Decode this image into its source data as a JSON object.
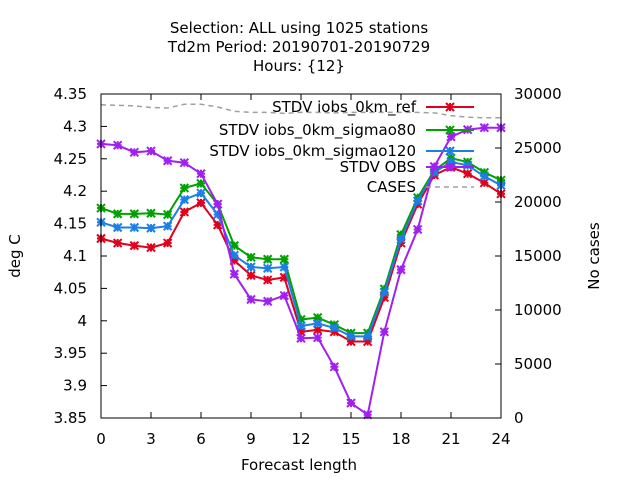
{
  "chart_data": {
    "type": "line",
    "title_lines": [
      "Selection: ALL using  1025 stations",
      "Td2m   Period: 20190701-20190729",
      "Hours: {12}"
    ],
    "xlabel": "Forecast length",
    "ylabel": "deg C",
    "y2label": "No cases",
    "xlim": [
      0,
      24
    ],
    "ylim": [
      3.85,
      4.35
    ],
    "y2lim": [
      0,
      30000
    ],
    "xticks": [
      0,
      3,
      6,
      9,
      12,
      15,
      18,
      21,
      24
    ],
    "yticks": [
      3.85,
      3.9,
      3.95,
      4,
      4.05,
      4.1,
      4.15,
      4.2,
      4.25,
      4.3,
      4.35
    ],
    "ytick_labels": [
      "3.85",
      "3.9",
      "3.95",
      "4",
      "4.05",
      "4.1",
      "4.15",
      "4.2",
      "4.25",
      "4.3",
      "4.35"
    ],
    "y2ticks": [
      0,
      5000,
      10000,
      15000,
      20000,
      25000,
      30000
    ],
    "legend_position": "top-right, inside",
    "grid": false,
    "x": [
      0,
      1,
      2,
      3,
      4,
      5,
      6,
      7,
      8,
      9,
      10,
      11,
      12,
      13,
      14,
      15,
      16,
      17,
      18,
      19,
      20,
      21,
      22,
      23,
      24
    ],
    "series": [
      {
        "name": "STDV iobs_0km_ref",
        "color": "#e0001c",
        "axis": "y1",
        "values": [
          4.127,
          4.12,
          4.116,
          4.113,
          4.12,
          4.168,
          4.182,
          4.148,
          4.093,
          4.07,
          4.063,
          4.067,
          3.983,
          3.986,
          3.983,
          3.968,
          3.968,
          4.036,
          4.12,
          4.18,
          4.225,
          4.237,
          4.227,
          4.213,
          4.196
        ]
      },
      {
        "name": "STDV iobs_0km_sigmao80",
        "color": "#00a100",
        "axis": "y1",
        "values": [
          4.174,
          4.165,
          4.165,
          4.166,
          4.164,
          4.205,
          4.212,
          4.18,
          4.116,
          4.098,
          4.095,
          4.095,
          4.002,
          4.005,
          3.994,
          3.981,
          3.981,
          4.049,
          4.133,
          4.19,
          4.232,
          4.251,
          4.245,
          4.229,
          4.217
        ]
      },
      {
        "name": "STDV iobs_0km_sigmao120",
        "color": "#1b7fe6",
        "axis": "y1",
        "values": [
          4.152,
          4.144,
          4.144,
          4.143,
          4.146,
          4.187,
          4.197,
          4.164,
          4.101,
          4.083,
          4.081,
          4.083,
          3.992,
          3.996,
          3.989,
          3.976,
          3.976,
          4.044,
          4.126,
          4.185,
          4.229,
          4.245,
          4.24,
          4.223,
          4.209
        ]
      },
      {
        "name": "STDV OBS",
        "color": "#a020f0",
        "axis": "y1",
        "values": [
          4.273,
          4.271,
          4.26,
          4.262,
          4.247,
          4.244,
          4.227,
          4.18,
          4.072,
          4.033,
          4.03,
          4.039,
          3.973,
          3.974,
          3.929,
          3.873,
          3.855,
          3.983,
          4.079,
          4.141,
          4.238,
          4.284,
          4.295,
          4.298,
          4.298
        ]
      },
      {
        "name": "CASES",
        "color": "#a0a0a0",
        "axis": "y2",
        "values": [
          29000,
          28950,
          28900,
          28750,
          28700,
          29050,
          29050,
          28800,
          28400,
          28300,
          28300,
          28200,
          28300,
          28300,
          28250,
          28300,
          28300,
          28300,
          28300,
          28300,
          28250,
          28000,
          27850,
          27800,
          27800
        ]
      }
    ]
  }
}
